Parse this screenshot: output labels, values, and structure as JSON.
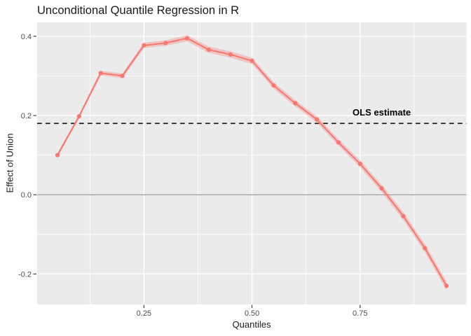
{
  "chart_data": {
    "type": "line",
    "title": "Unconditional Quantile Regression in R",
    "xlabel": "Quantiles",
    "ylabel": "Effect of Union",
    "x": [
      0.05,
      0.1,
      0.15,
      0.2,
      0.25,
      0.3,
      0.35,
      0.4,
      0.45,
      0.5,
      0.55,
      0.6,
      0.65,
      0.7,
      0.75,
      0.8,
      0.85,
      0.9,
      0.95
    ],
    "y": [
      0.1,
      0.198,
      0.307,
      0.3,
      0.377,
      0.383,
      0.395,
      0.366,
      0.354,
      0.338,
      0.276,
      0.231,
      0.19,
      0.132,
      0.078,
      0.016,
      -0.054,
      -0.135,
      -0.23
    ],
    "ci_half": [
      0.005,
      0.005,
      0.006,
      0.006,
      0.007,
      0.007,
      0.008,
      0.008,
      0.008,
      0.008,
      0.008,
      0.008,
      0.008,
      0.008,
      0.009,
      0.009,
      0.01,
      0.01,
      0.011
    ],
    "hline": {
      "y": 0.18,
      "style": "dashed"
    },
    "annotation": {
      "text": "OLS estimate",
      "x": 0.8,
      "y": 0.2
    },
    "zero_line_y": 0.0,
    "x_ticks": {
      "values": [
        0.25,
        0.5,
        0.75
      ],
      "labels": [
        "0.25",
        "0.50",
        "0.75"
      ]
    },
    "y_ticks": {
      "values": [
        0.4,
        0.2,
        0.0,
        -0.2
      ],
      "labels": [
        "0.4",
        "0.2",
        "0.0",
        "-0.2"
      ]
    },
    "x_minor": [
      0.125,
      0.375,
      0.625,
      0.875
    ],
    "y_minor": [
      0.3,
      0.1,
      -0.1
    ],
    "xlim": [
      0.003,
      0.996
    ],
    "ylim": [
      -0.277,
      0.435
    ],
    "grid": true,
    "legend": "none",
    "colors": {
      "series": "#F8766D",
      "ribbon": "rgba(248,118,109,0.32)",
      "panel_bg": "#EBEBEB",
      "grid_major": "#FFFFFF",
      "grid_minor": "#FFFFFF",
      "zero_line": "#9B9B9B",
      "hline": "#111111",
      "axis_text": "#4D4D4D",
      "tick": "#333333",
      "annotation_text": "#000000"
    }
  }
}
